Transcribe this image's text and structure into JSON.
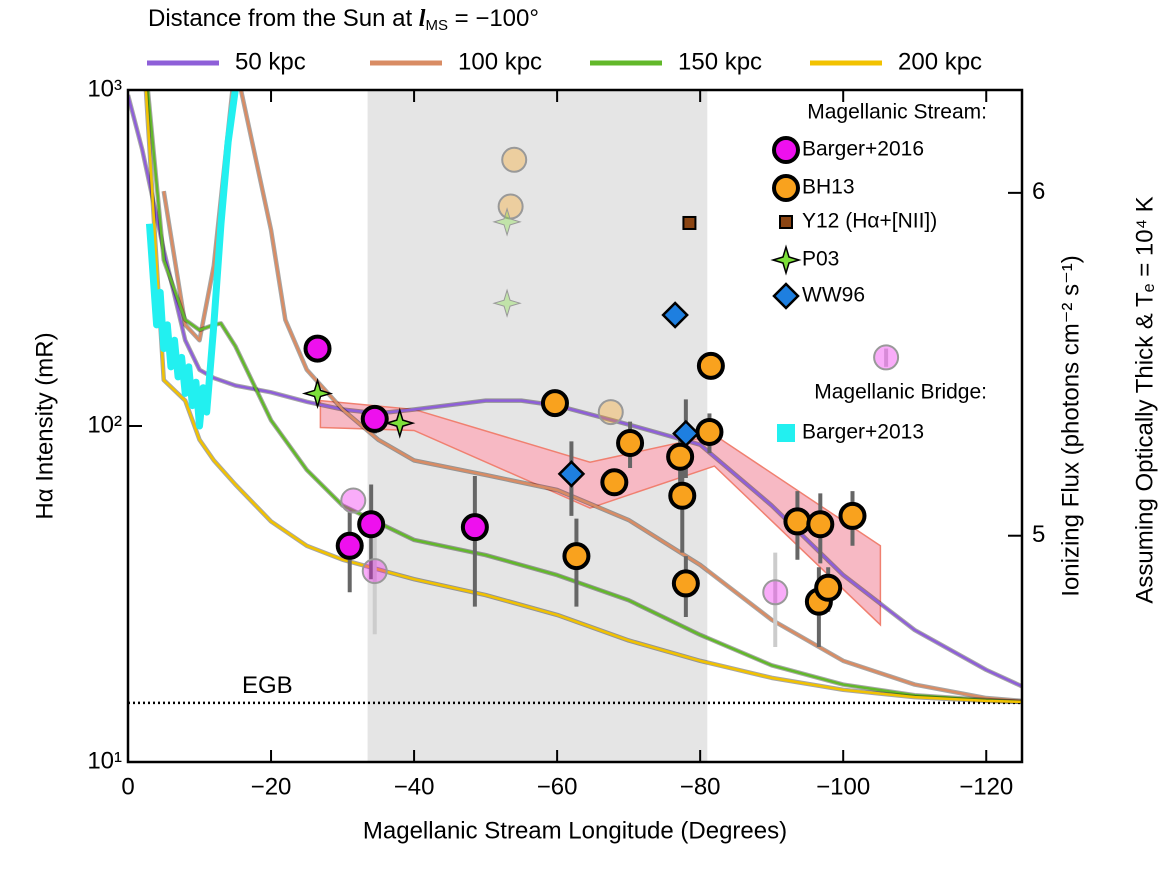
{
  "chart_data": {
    "type": "line",
    "legend_title": [
      "Distance from the Sun at ",
      "l",
      "MS",
      " = −100°"
    ],
    "xlabel": "Magellanic Stream Longitude (Degrees)",
    "ylabel": "Hα Intensity (mR)",
    "y2label": "Ionizing Flux (photons cm⁻² s⁻¹)",
    "y2label_note": "Assuming Optically Thick & Tₑ = 10⁴ K",
    "xlim": [
      0,
      -125
    ],
    "xticks": [
      0,
      {
        "value": -20,
        "label": "−20"
      },
      {
        "value": -40,
        "label": "−40"
      },
      {
        "value": -60,
        "label": "−60"
      },
      {
        "value": -80,
        "label": "−80"
      },
      {
        "value": -100,
        "label": "−100"
      },
      {
        "value": -120,
        "label": "−120"
      }
    ],
    "ylim": [
      10,
      1000
    ],
    "yscale": "log",
    "yticks": [
      {
        "value": 10,
        "label": "10¹"
      },
      {
        "value": 100,
        "label": "10²"
      },
      {
        "value": 1000,
        "label": "10³"
      }
    ],
    "y2lim": [
      4.34,
      6.3
    ],
    "y2ticks": [
      5,
      6
    ],
    "shaded_xrange": [
      -33.5,
      -81
    ],
    "shaded_color": "#e5e5e5",
    "reference_line": {
      "value": 15,
      "label": "EGB"
    },
    "band": {
      "color": "#f7b9c4",
      "edge_color": "#f08070",
      "x": [
        -26.9,
        -40,
        -64.6,
        -82,
        -105.2
      ],
      "upper": [
        119,
        112,
        78,
        94,
        44
      ],
      "lower": [
        99,
        97,
        57,
        76,
        25.6
      ]
    },
    "series": [
      {
        "name": "50 kpc",
        "color": "#8e5fd8",
        "x": [
          0,
          -2,
          -5,
          -8,
          -10,
          -12,
          -15,
          -20,
          -25,
          -30,
          -35,
          -40,
          -50,
          -55,
          -60,
          -70,
          -80,
          -90,
          -100,
          -110,
          -120,
          -125
        ],
        "values": [
          966,
          663,
          334,
          180,
          147,
          139,
          132,
          126,
          118,
          112,
          109,
          112,
          119,
          119,
          115,
          101,
          88,
          58,
          36,
          24.7,
          18.8,
          16.8
        ]
      },
      {
        "name": "100 kpc",
        "color": "#d98c64",
        "x": [
          -5,
          -8,
          -10,
          -12,
          -15,
          -20,
          -22,
          -25,
          -30,
          -35,
          -40,
          -50,
          -60,
          -70,
          -80,
          -90,
          -100,
          -110,
          -120,
          -125
        ],
        "values": [
          500,
          200,
          180,
          300,
          1200,
          383,
          207,
          147,
          112,
          91,
          79,
          71.5,
          64.5,
          52.5,
          38.6,
          26.5,
          20,
          17,
          15.5,
          15.2
        ]
      },
      {
        "name": "150 kpc",
        "color": "#62b82a",
        "x": [
          -2,
          -5,
          -8,
          -10,
          -12,
          -13,
          -15,
          -20,
          -25,
          -30,
          -40,
          -50,
          -60,
          -70,
          -80,
          -90,
          -100,
          -110,
          -120,
          -125
        ],
        "values": [
          1500,
          312,
          207,
          193,
          200,
          202,
          173,
          104,
          74,
          58,
          45.8,
          41.3,
          36,
          30.3,
          23.9,
          19.4,
          17,
          15.8,
          15.3,
          15.1
        ]
      },
      {
        "name": "200 kpc",
        "color": "#f2c200",
        "x": [
          -2,
          -5,
          -8,
          -10,
          -12,
          -15,
          -20,
          -25,
          -30,
          -40,
          -50,
          -60,
          -70,
          -80,
          -90,
          -100,
          -110,
          -120,
          -125
        ],
        "values": [
          1500,
          137,
          119,
          91,
          79,
          67,
          52,
          44,
          40,
          35,
          31.4,
          27.4,
          23,
          20,
          17.8,
          16.4,
          15.6,
          15.2,
          15.1
        ]
      }
    ],
    "legend_headings": [
      "Magellanic Stream:",
      "Magellanic Bridge:"
    ],
    "observations": [
      {
        "name": "Barger+2016",
        "color": "#ee10ee",
        "marker": "circle",
        "x": [
          -26.5,
          -31,
          -34,
          -34.5,
          -48.5,
          -31.5,
          -34.5,
          -90.5,
          -106
        ],
        "values": [
          170,
          44,
          51,
          105,
          50,
          60,
          37,
          32,
          160
        ],
        "errors": [
          8,
          12,
          16,
          10,
          21,
          null,
          13,
          10,
          10
        ],
        "faded": [
          false,
          false,
          false,
          false,
          false,
          true,
          true,
          true,
          true
        ]
      },
      {
        "name": "BH13",
        "color": "#f9a21e",
        "marker": "circle",
        "x": [
          -59.7,
          -68,
          -70.2,
          -77.2,
          -77.5,
          -81.3,
          -81.5,
          -62.7,
          -78,
          -93.6,
          -96.8,
          -96.6,
          -97.9,
          -101.3,
          -54,
          -53.5,
          -67.5
        ],
        "values": [
          117,
          68,
          89,
          81,
          62,
          96,
          151,
          41,
          34,
          52,
          51,
          30,
          33,
          54,
          620,
          450,
          110
        ],
        "errors": [
          10,
          5,
          14,
          15,
          20,
          13,
          8,
          12,
          7,
          12,
          12,
          8,
          5,
          10,
          null,
          null,
          null
        ],
        "faded": [
          false,
          false,
          false,
          false,
          false,
          false,
          false,
          false,
          false,
          false,
          false,
          false,
          false,
          false,
          true,
          true,
          true
        ]
      },
      {
        "name": "Y12 (Hα+[NII])",
        "color": "#8b4513",
        "marker": "square",
        "x": [
          -78.5
        ],
        "values": [
          402
        ],
        "errors": [
          null
        ],
        "faded": [
          false
        ]
      },
      {
        "name": "P03",
        "color": "#7de03a",
        "marker": "star",
        "x": [
          -26.5,
          -38,
          -53,
          -53
        ],
        "values": [
          125,
          102,
          405,
          232
        ],
        "errors": [
          10,
          null,
          null,
          null
        ],
        "faded": [
          false,
          false,
          true,
          true
        ]
      },
      {
        "name": "WW96",
        "color": "#1e7fe0",
        "marker": "diamond",
        "x": [
          -62,
          -76.5,
          -78
        ],
        "values": [
          72,
          214,
          95
        ],
        "errors": [
          18,
          null,
          25
        ],
        "faded": [
          false,
          false,
          false
        ]
      },
      {
        "name": "Barger+2013",
        "color": "#22f0f0",
        "marker": "trace",
        "x": [
          -3,
          -4,
          -4.5,
          -5,
          -5.5,
          -6,
          -6.5,
          -7,
          -7.5,
          -8,
          -8.5,
          -9,
          -9.5,
          -10,
          -10.5,
          -11,
          -12,
          -13,
          -14,
          -15
        ],
        "values": [
          400,
          200,
          250,
          170,
          200,
          150,
          180,
          140,
          160,
          125,
          150,
          115,
          135,
          100,
          130,
          110,
          200,
          400,
          700,
          1000
        ]
      }
    ]
  }
}
